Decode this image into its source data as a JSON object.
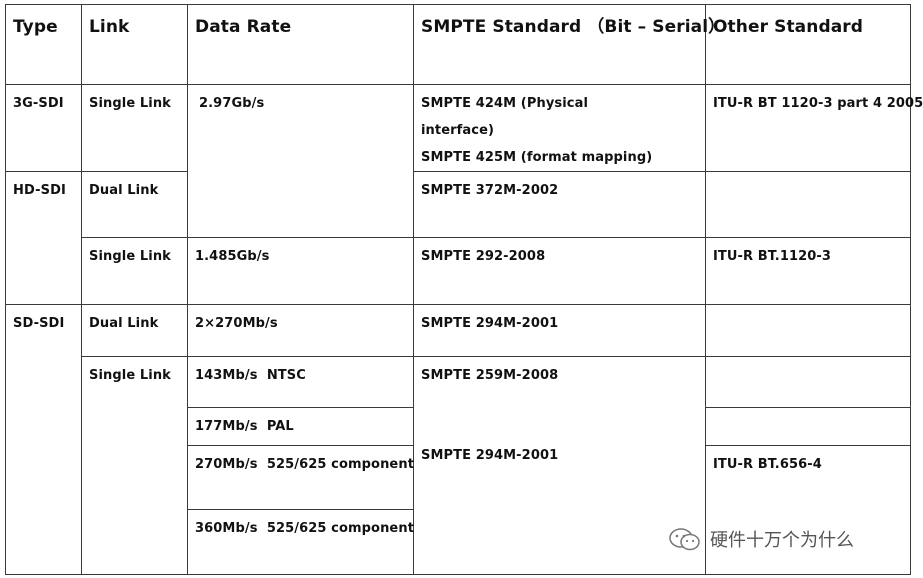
{
  "table": {
    "headers": {
      "type": "Type",
      "link": "Link",
      "data_rate": "Data Rate",
      "smpte": "SMPTE Standard （Bit – Serial）",
      "other": "Other Standard"
    },
    "rows": [
      {
        "type": "3G-SDI",
        "link": "Single Link",
        "rate": "2.97Gb/s",
        "smpte_lines": [
          "SMPTE 424M (Physical",
          "interface)",
          "SMPTE 425M (format mapping)"
        ],
        "other": "ITU-R BT 1120-3 part 4 2005"
      },
      {
        "type": "HD-SDI",
        "link": "Dual Link",
        "smpte": "SMPTE 372M-2002",
        "other": ""
      },
      {
        "link": "Single Link",
        "rate": "1.485Gb/s",
        "smpte": "SMPTE 292-2008",
        "other": "ITU-R BT.1120-3"
      },
      {
        "type": "SD-SDI",
        "link": "Dual Link",
        "rate": "2×270Mb/s",
        "smpte": "SMPTE 294M-2001",
        "other": ""
      },
      {
        "link": "Single Link",
        "rate": "143Mb/s  NTSC",
        "smpte": "SMPTE 259M-2008",
        "other": ""
      },
      {
        "rate": "177Mb/s  PAL",
        "other": ""
      },
      {
        "rate": "270Mb/s  525/625 component",
        "smpte": "SMPTE 294M-2001",
        "other": "ITU-R BT.656-4"
      },
      {
        "rate": "360Mb/s  525/625 component"
      }
    ]
  },
  "watermark": {
    "text": "硬件十万个为什么",
    "icon": "wechat-icon"
  }
}
